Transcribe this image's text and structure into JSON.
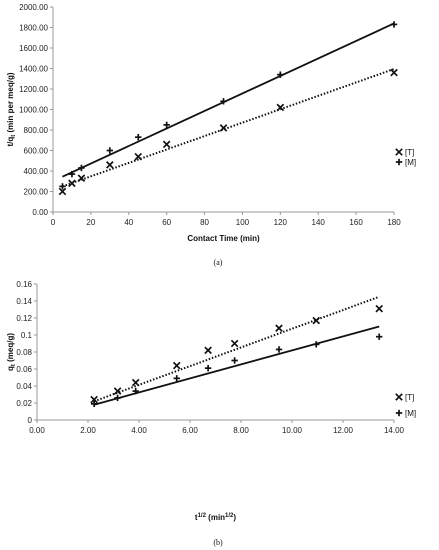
{
  "chart_data": [
    {
      "type": "scatter",
      "caption": "(a)",
      "xlabel": "Contact Time (min)",
      "ylabel_main": "t/q",
      "ylabel_sub": "t",
      "ylabel_rest": " (min per meq/g)",
      "xlim": [
        0,
        180
      ],
      "ylim": [
        0,
        2000
      ],
      "x_ticks": [
        "0",
        "20",
        "40",
        "60",
        "80",
        "100",
        "120",
        "140",
        "160",
        "180"
      ],
      "y_ticks": [
        "0.00",
        "200.00",
        "400.00",
        "600.00",
        "800.00",
        "1000.00",
        "1200.00",
        "1400.00",
        "1600.00",
        "1800.00",
        "2000.00"
      ],
      "grid": false,
      "legend_position": "right",
      "series": [
        {
          "name": "[T]",
          "marker": "x",
          "line": "dotted",
          "x": [
            5,
            10,
            15,
            30,
            45,
            60,
            90,
            120,
            180
          ],
          "y": [
            200,
            280,
            330,
            460,
            540,
            660,
            820,
            1020,
            1360
          ],
          "fit": [
            [
              5,
              250
            ],
            [
              180,
              1395
            ]
          ]
        },
        {
          "name": "[M]",
          "marker": "+",
          "line": "solid",
          "x": [
            5,
            10,
            15,
            30,
            45,
            60,
            90,
            120,
            180
          ],
          "y": [
            250,
            370,
            430,
            600,
            730,
            850,
            1080,
            1340,
            1830
          ],
          "fit": [
            [
              5,
              345
            ],
            [
              180,
              1840
            ]
          ]
        }
      ]
    },
    {
      "type": "scatter",
      "caption": "(b)",
      "xlabel_main": "t",
      "xlabel_sup1": "1/2",
      "xlabel_mid": " (min",
      "xlabel_sup2": "1/2",
      "xlabel_end": ")",
      "ylabel_main": "q",
      "ylabel_sub": "t",
      "ylabel_rest": " (meq/g)",
      "xlim": [
        0,
        14
      ],
      "ylim": [
        0,
        0.16
      ],
      "x_ticks": [
        "0.00",
        "2.00",
        "4.00",
        "6.00",
        "8.00",
        "10.00",
        "12.00",
        "14.00"
      ],
      "y_ticks": [
        "0",
        "0.02",
        "0.04",
        "0.06",
        "0.08",
        "0.1",
        "0.12",
        "0.14",
        "0.16"
      ],
      "grid": false,
      "legend_position": "right",
      "series": [
        {
          "name": "[T]",
          "marker": "x",
          "line": "dotted",
          "x": [
            2.24,
            3.16,
            3.87,
            5.48,
            6.71,
            7.75,
            9.49,
            10.95,
            13.42
          ],
          "y": [
            0.024,
            0.034,
            0.044,
            0.064,
            0.082,
            0.09,
            0.108,
            0.117,
            0.131
          ],
          "fit": [
            [
              2.24,
              0.022
            ],
            [
              13.42,
              0.145
            ]
          ]
        },
        {
          "name": "[M]",
          "marker": "+",
          "line": "solid",
          "x": [
            2.24,
            3.16,
            3.87,
            5.48,
            6.71,
            7.75,
            9.49,
            10.95,
            13.42
          ],
          "y": [
            0.019,
            0.026,
            0.034,
            0.049,
            0.061,
            0.07,
            0.083,
            0.089,
            0.098
          ],
          "fit": [
            [
              2.24,
              0.018
            ],
            [
              13.42,
              0.11
            ]
          ]
        }
      ]
    }
  ],
  "legend_entries": [
    "[T]",
    "[M]"
  ]
}
